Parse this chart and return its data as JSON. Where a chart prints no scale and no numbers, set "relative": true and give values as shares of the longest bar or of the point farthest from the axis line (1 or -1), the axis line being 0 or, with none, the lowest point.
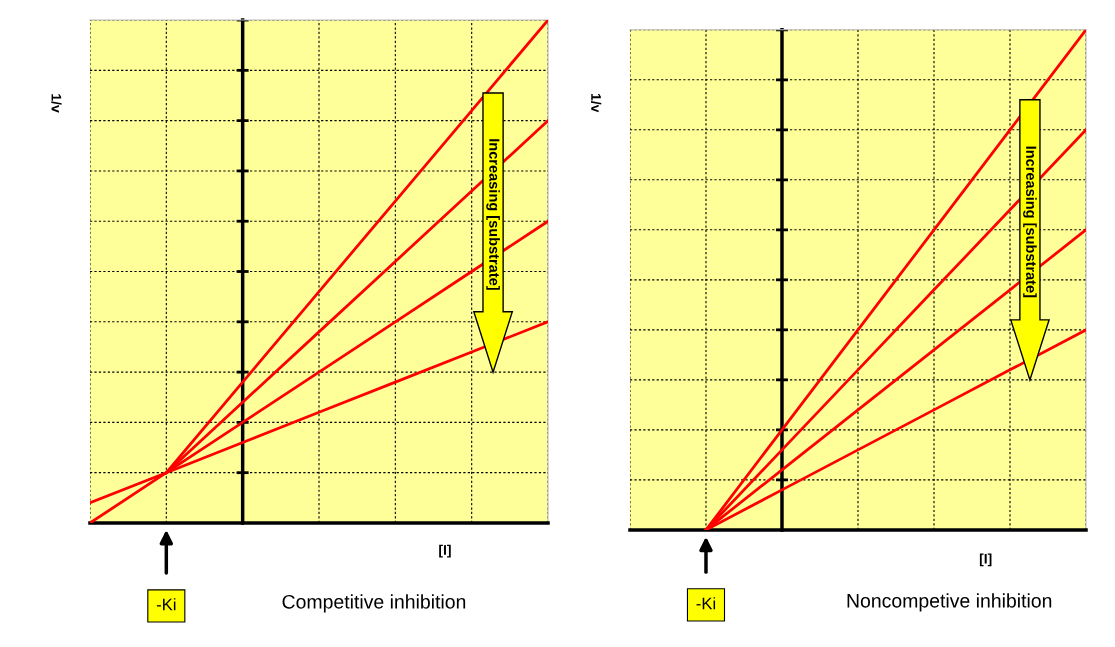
{
  "chart_data": [
    {
      "type": "line",
      "title": "Competitive inhibition",
      "xlabel": "[I]",
      "ylabel": "1/v",
      "relative": true,
      "grid": true,
      "line_style": "solid",
      "categories": [
        null,
        null,
        null,
        null,
        null,
        null,
        null
      ],
      "series": [
        {
          "color": "#ff0000",
          "values": [
            null,
            0.1,
            0.28,
            0.46,
            0.64,
            0.82,
            1.0
          ]
        },
        {
          "color": "#ff0000",
          "values": [
            null,
            0.1,
            0.24,
            0.38,
            0.52,
            0.66,
            0.8
          ]
        },
        {
          "color": "#ff0000",
          "values": [
            0,
            0.1,
            0.2,
            0.3,
            0.4,
            0.5,
            0.6
          ]
        },
        {
          "color": "#ff0000",
          "values": [
            0.04,
            0.1,
            0.16,
            0.22,
            0.28,
            0.34,
            0.4
          ]
        }
      ],
      "annotations": [
        "-Ki",
        "Increasing [substrate]"
      ]
    },
    {
      "type": "line",
      "title": "Noncompetive inhibition",
      "xlabel": "[I]",
      "ylabel": "1/v",
      "relative": true,
      "grid": true,
      "line_style": "solid",
      "categories": [
        null,
        null,
        null,
        null,
        null,
        null,
        null
      ],
      "series": [
        {
          "color": "#ff0000",
          "values": [
            null,
            0,
            0.2,
            0.4,
            0.6,
            0.8,
            1.0
          ]
        },
        {
          "color": "#ff0000",
          "values": [
            null,
            0,
            0.16,
            0.32,
            0.48,
            0.64,
            0.8
          ]
        },
        {
          "color": "#ff0000",
          "values": [
            null,
            0,
            0.12,
            0.24,
            0.36,
            0.48,
            0.6
          ]
        },
        {
          "color": "#ff0000",
          "values": [
            null,
            0,
            0.08,
            0.16,
            0.24,
            0.32,
            0.4
          ]
        }
      ],
      "annotations": [
        "-Ki",
        "Increasing [substrate]"
      ]
    }
  ]
}
